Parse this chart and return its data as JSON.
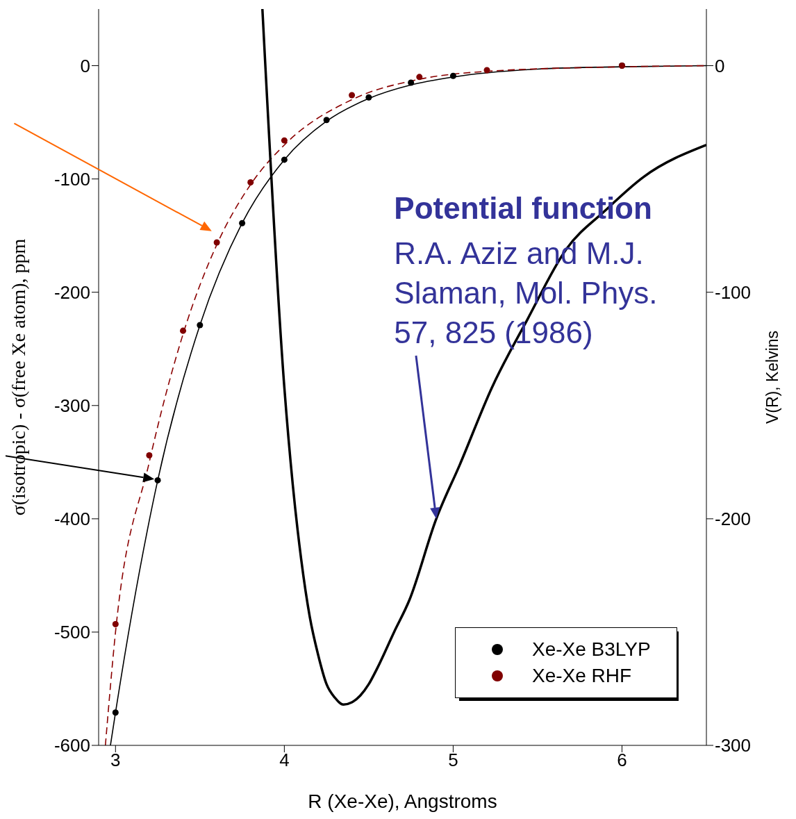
{
  "chart_data": {
    "type": "scatter",
    "xlabel": "R (Xe-Xe), Angstroms",
    "ylabel": "σ(isotropic) - σ(free Xe atom), ppm",
    "y2label": "V(R), Kelvins",
    "annotations": [
      "Potential function",
      "R.A. Aziz and M.J. Slaman, Mol. Phys. 57, 825 (1986)"
    ],
    "xlim": [
      2.9,
      6.5
    ],
    "xticks": [
      3,
      4,
      5,
      6
    ],
    "ylim": [
      -600,
      50
    ],
    "yticks": [
      -600,
      -500,
      -400,
      -300,
      -200,
      -100,
      0
    ],
    "y2lim": [
      -300,
      25
    ],
    "y2ticks": [
      -300,
      -200,
      -100,
      0
    ],
    "marker": "circle",
    "legend": "bottom right",
    "grid": false,
    "series": [
      {
        "type": "line",
        "marker": "none",
        "color": "#000000",
        "line_style": "solid",
        "x": [
          2.97,
          3,
          3.25,
          3.5,
          3.75,
          4,
          4.25,
          4.5,
          4.75,
          5,
          5.5,
          6,
          6.5
        ],
        "values": [
          -600,
          -571,
          -366,
          -229,
          -139,
          -83,
          -49,
          -29,
          -17,
          -10,
          -3,
          -1,
          0
        ]
      },
      {
        "type": "line",
        "marker": "none",
        "color": "#8b0000",
        "line_style": "dashed",
        "x": [
          2.94,
          3,
          3.2,
          3.4,
          3.6,
          3.8,
          4,
          4.4,
          4.8,
          5.2,
          6,
          6.5
        ],
        "values": [
          -600,
          -500,
          -350,
          -237,
          -158,
          -105,
          -70,
          -30,
          -12,
          -5,
          -1,
          0
        ]
      },
      {
        "type": "line",
        "marker": "none",
        "color": "#000000",
        "line_style": "solid",
        "axis": "y2",
        "x": [
          3.87,
          4.0,
          4.05,
          4.1,
          4.15,
          4.2,
          4.25,
          4.3,
          4.35,
          4.4,
          4.45,
          4.5,
          4.55,
          4.65,
          4.74,
          4.9,
          5.04,
          5.23,
          5.44,
          5.67,
          5.9,
          6.13,
          6.5
        ],
        "values": [
          25,
          -142,
          -185,
          -218,
          -243,
          -260,
          -273,
          -279,
          -282,
          -281,
          -278,
          -273,
          -266,
          -250,
          -236,
          -200,
          -176,
          -142,
          -112,
          -81,
          -64,
          -49,
          -35
        ]
      },
      {
        "name": "Xe-Xe B3LYP",
        "color": "#000000",
        "x": [
          3,
          3.25,
          3.5,
          3.75,
          4,
          4.25,
          4.5,
          4.75,
          5,
          6
        ],
        "values": [
          -571,
          -366,
          -229,
          -139,
          -83,
          -48,
          -28,
          -15,
          -9,
          0
        ]
      },
      {
        "name": "Xe-Xe RHF",
        "color": "#800000",
        "x": [
          3,
          3.2,
          3.4,
          3.6,
          3.8,
          4,
          4.4,
          4.8,
          5.2,
          6
        ],
        "values": [
          -493,
          -344,
          -234,
          -156,
          -103,
          -66,
          -26,
          -10,
          -4,
          0
        ]
      }
    ]
  }
}
